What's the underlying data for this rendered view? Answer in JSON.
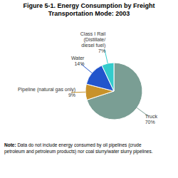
{
  "chart_data": {
    "type": "pie",
    "title": "Figure 5-1.  Energy Consumption by Freight\nTransportation Mode: 2003",
    "categories": [
      "Truck",
      "Pipeline (natural gas only)",
      "Water",
      "Class I Rail\n(Distillate/\ndiesel fuel)"
    ],
    "values": [
      70,
      9,
      14,
      7
    ],
    "value_labels": [
      "70%",
      "9%",
      "14%",
      "7%"
    ],
    "colors": [
      "#7a9e94",
      "#c8922a",
      "#2255cc",
      "#33cccc"
    ],
    "data_labels": true,
    "annotations": [
      "Note:",
      "Data do not include energy consumed by oil pipelines (crude\npetroleum and petroleum products) nor coal slurry/water slurry pipelines."
    ]
  }
}
